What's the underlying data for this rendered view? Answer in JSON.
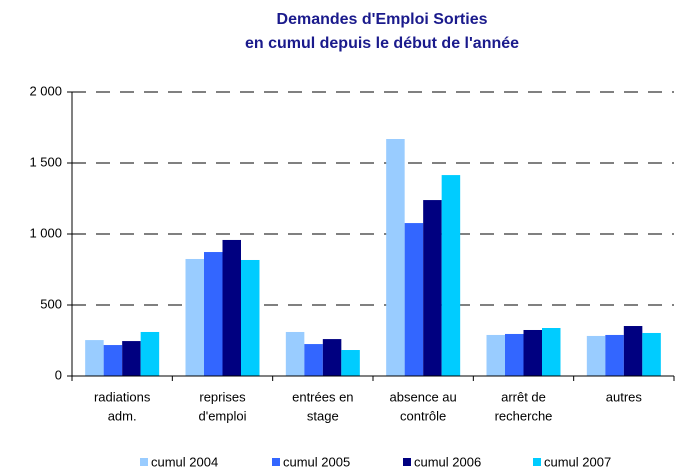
{
  "chart_data": {
    "type": "bar",
    "title": [
      "Demandes d'Emploi Sorties",
      "en cumul depuis le début de l'année"
    ],
    "categories": [
      [
        "radiations",
        "adm."
      ],
      [
        "reprises",
        "d'emploi"
      ],
      [
        "entrées en",
        "stage"
      ],
      [
        "absence au",
        "contrôle"
      ],
      [
        "arrêt de",
        "recherche"
      ],
      [
        "autres"
      ]
    ],
    "series": [
      {
        "name": "cumul 2004",
        "color": "#99ccff",
        "values": [
          253,
          824,
          310,
          1669,
          289,
          282
        ]
      },
      {
        "name": "cumul 2005",
        "color": "#3366ff",
        "values": [
          218,
          873,
          225,
          1077,
          296,
          289
        ]
      },
      {
        "name": "cumul 2006",
        "color": "#000080",
        "values": [
          246,
          958,
          260,
          1239,
          324,
          352
        ]
      },
      {
        "name": "cumul 2007",
        "color": "#00ccff",
        "values": [
          310,
          817,
          183,
          1415,
          338,
          303
        ]
      }
    ],
    "ylim": [
      0,
      2000
    ],
    "yticks": [
      0,
      500,
      {
        "value": 1000,
        "label": "1 000"
      },
      {
        "value": 1500,
        "label": "1 500"
      },
      {
        "value": 2000,
        "label": "2 000"
      }
    ],
    "grid": true,
    "legend": "bottom"
  }
}
